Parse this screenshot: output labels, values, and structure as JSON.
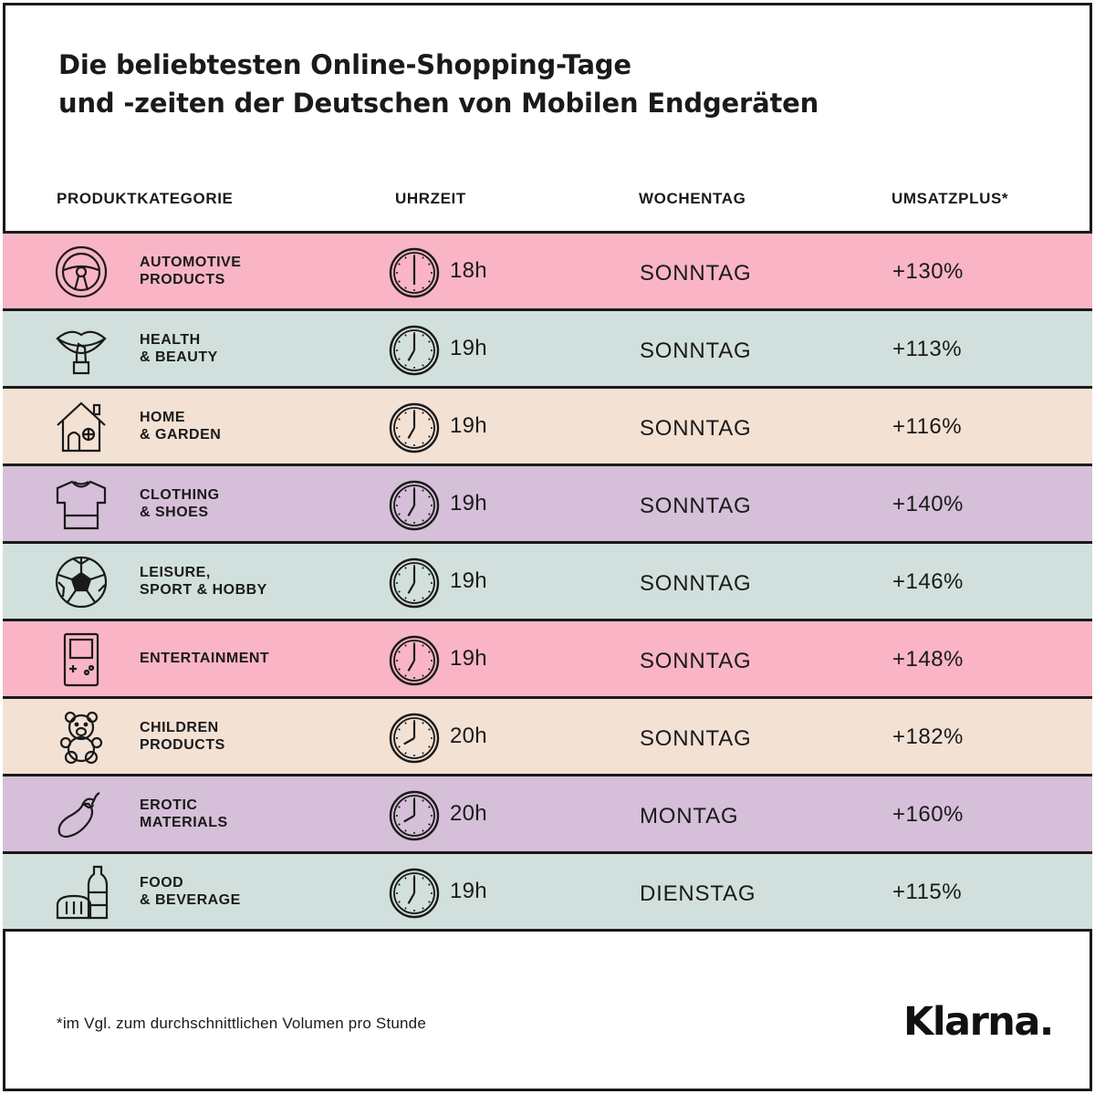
{
  "title": {
    "line1": "Die beliebtesten Online-Shopping-Tage",
    "line2": "und -zeiten der Deutschen von Mobilen Endgeräten"
  },
  "headers": {
    "category": "PRODUKTKATEGORIE",
    "time": "UHRZEIT",
    "weekday": "WOCHENTAG",
    "revenue": "UMSATZPLUS*"
  },
  "colors": {
    "pink": "#f9b5c6",
    "mint": "#d2e0dd",
    "peach": "#f3e1d4",
    "lavender": "#d6bfd9"
  },
  "rows": [
    {
      "line1": "AUTOMOTIVE",
      "line2": "PRODUCTS",
      "icon": "steering-wheel-icon",
      "time": "18h",
      "hour": 18,
      "day": "SONNTAG",
      "plus": "+130%",
      "color": "#f9b5c6"
    },
    {
      "line1": "HEALTH",
      "line2": "& BEAUTY",
      "icon": "lipstick-icon",
      "time": "19h",
      "hour": 19,
      "day": "SONNTAG",
      "plus": "+113%",
      "color": "#d2e0dd"
    },
    {
      "line1": "HOME",
      "line2": "& GARDEN",
      "icon": "house-icon",
      "time": "19h",
      "hour": 19,
      "day": "SONNTAG",
      "plus": "+116%",
      "color": "#f3e1d4"
    },
    {
      "line1": "CLOTHING",
      "line2": "& SHOES",
      "icon": "tshirt-icon",
      "time": "19h",
      "hour": 19,
      "day": "SONNTAG",
      "plus": "+140%",
      "color": "#d6bfd9"
    },
    {
      "line1": "LEISURE,",
      "line2": "SPORT & HOBBY",
      "icon": "soccer-ball-icon",
      "time": "19h",
      "hour": 19,
      "day": "SONNTAG",
      "plus": "+146%",
      "color": "#d2e0dd"
    },
    {
      "line1": "ENTERTAINMENT",
      "line2": "",
      "icon": "game-console-icon",
      "time": "19h",
      "hour": 19,
      "day": "SONNTAG",
      "plus": "+148%",
      "color": "#f9b5c6"
    },
    {
      "line1": "CHILDREN",
      "line2": "PRODUCTS",
      "icon": "teddy-bear-icon",
      "time": "20h",
      "hour": 20,
      "day": "SONNTAG",
      "plus": "+182%",
      "color": "#f3e1d4"
    },
    {
      "line1": "EROTIC",
      "line2": "MATERIALS",
      "icon": "eggplant-icon",
      "time": "20h",
      "hour": 20,
      "day": "MONTAG",
      "plus": "+160%",
      "color": "#d6bfd9"
    },
    {
      "line1": "FOOD",
      "line2": "& BEVERAGE",
      "icon": "bread-bottle-icon",
      "time": "19h",
      "hour": 19,
      "day": "DIENSTAG",
      "plus": "+115%",
      "color": "#d2e0dd"
    }
  ],
  "footnote": "*im Vgl. zum durchschnittlichen Volumen pro Stunde",
  "logo": "Klarna."
}
